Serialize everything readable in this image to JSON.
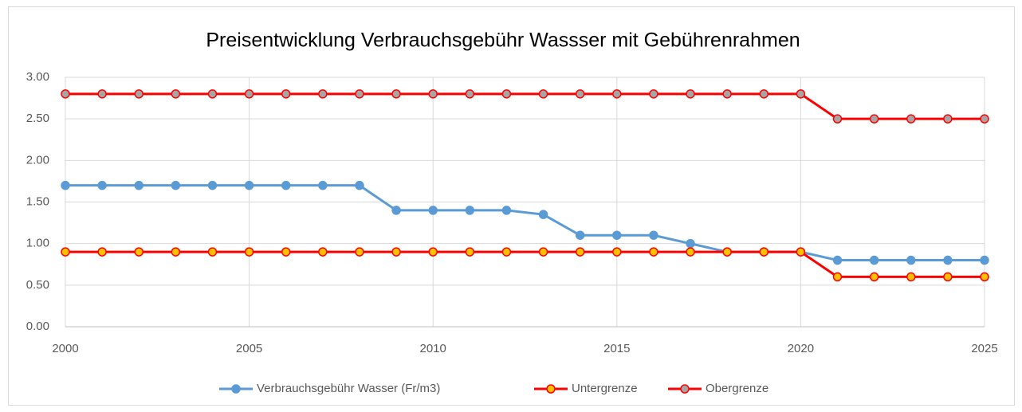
{
  "chart_data": {
    "type": "line",
    "title": "Preisentwicklung Verbrauchsgebühr Wassser mit Gebührenrahmen",
    "x": [
      2000,
      2001,
      2002,
      2003,
      2004,
      2005,
      2006,
      2007,
      2008,
      2009,
      2010,
      2011,
      2012,
      2013,
      2014,
      2015,
      2016,
      2017,
      2018,
      2019,
      2020,
      2021,
      2022,
      2023,
      2024,
      2025
    ],
    "series": [
      {
        "name": "Verbrauchsgebühr Wasser (Fr/m3)",
        "color": "#5b9bd5",
        "marker_color": "#5b9bd5",
        "values": [
          1.7,
          1.7,
          1.7,
          1.7,
          1.7,
          1.7,
          1.7,
          1.7,
          1.7,
          1.4,
          1.4,
          1.4,
          1.4,
          1.35,
          1.1,
          1.1,
          1.1,
          1.0,
          0.9,
          0.9,
          0.9,
          0.8,
          0.8,
          0.8,
          0.8,
          0.8
        ]
      },
      {
        "name": "Untergrenze",
        "color": "#ff0000",
        "marker_color": "#ffc000",
        "values": [
          0.9,
          0.9,
          0.9,
          0.9,
          0.9,
          0.9,
          0.9,
          0.9,
          0.9,
          0.9,
          0.9,
          0.9,
          0.9,
          0.9,
          0.9,
          0.9,
          0.9,
          0.9,
          0.9,
          0.9,
          0.9,
          0.6,
          0.6,
          0.6,
          0.6,
          0.6
        ]
      },
      {
        "name": "Obergrenze",
        "color": "#ff0000",
        "marker_color": "#a5a5a5",
        "values": [
          2.8,
          2.8,
          2.8,
          2.8,
          2.8,
          2.8,
          2.8,
          2.8,
          2.8,
          2.8,
          2.8,
          2.8,
          2.8,
          2.8,
          2.8,
          2.8,
          2.8,
          2.8,
          2.8,
          2.8,
          2.8,
          2.5,
          2.5,
          2.5,
          2.5,
          2.5
        ]
      }
    ],
    "xlim": [
      2000,
      2025
    ],
    "xticks": [
      2000,
      2005,
      2010,
      2015,
      2020,
      2025
    ],
    "ylim": [
      0,
      3
    ],
    "yticks": [
      {
        "value": 0,
        "label": "0.00"
      },
      {
        "value": 0.5,
        "label": "0.50"
      },
      {
        "value": 1,
        "label": "1.00"
      },
      {
        "value": 1.5,
        "label": "1.50"
      },
      {
        "value": 2,
        "label": "2.00"
      },
      {
        "value": 2.5,
        "label": "2.50"
      },
      {
        "value": 3,
        "label": "3.00"
      }
    ],
    "grid": true,
    "legend": "bottom"
  }
}
